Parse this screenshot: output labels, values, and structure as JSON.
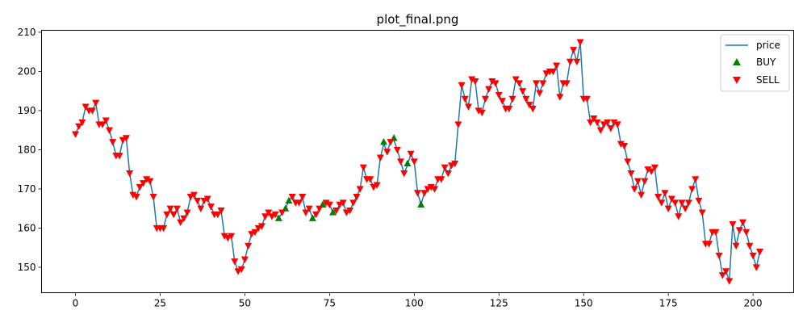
{
  "chart_data": {
    "type": "line",
    "title": "plot_final.png",
    "xlabel": "",
    "ylabel": "",
    "xlim": [
      -10,
      212
    ],
    "ylim": [
      143.5,
      210.5
    ],
    "xticks": [
      0,
      25,
      50,
      75,
      100,
      125,
      150,
      175,
      200
    ],
    "yticks": [
      150,
      160,
      170,
      180,
      190,
      200,
      210
    ],
    "grid": false,
    "legend_position": "top-right",
    "colors": {
      "price": "#1f77b4",
      "buy": "#008000",
      "sell": "#ff0000"
    },
    "legend": [
      {
        "key": "price",
        "label": "price"
      },
      {
        "key": "buy",
        "label": "BUY"
      },
      {
        "key": "sell",
        "label": "SELL"
      }
    ],
    "price": [
      184.0,
      186.0,
      187.0,
      191.0,
      190.0,
      190.0,
      192.0,
      186.5,
      186.5,
      187.5,
      185.0,
      182.0,
      178.5,
      178.5,
      182.5,
      183.0,
      174.0,
      168.5,
      168.0,
      170.5,
      171.5,
      172.5,
      172.0,
      168.0,
      160.0,
      160.0,
      160.0,
      163.5,
      165.0,
      163.5,
      165.0,
      161.5,
      162.5,
      164.0,
      168.0,
      168.5,
      167.0,
      165.0,
      167.0,
      167.5,
      165.5,
      163.5,
      163.5,
      164.5,
      158.0,
      157.5,
      158.0,
      151.5,
      149.0,
      149.5,
      152.0,
      155.5,
      158.5,
      159.0,
      160.0,
      160.5,
      163.0,
      164.0,
      163.0,
      163.5,
      162.5,
      164.0,
      165.0,
      167.0,
      168.0,
      166.5,
      166.5,
      168.0,
      164.0,
      165.0,
      162.5,
      163.5,
      165.0,
      166.0,
      166.5,
      166.0,
      164.0,
      164.5,
      166.0,
      166.5,
      164.0,
      164.5,
      166.5,
      168.0,
      170.0,
      175.5,
      172.5,
      172.5,
      170.5,
      171.0,
      178.0,
      181.5,
      179.5,
      182.0,
      182.5,
      180.0,
      177.0,
      174.0,
      176.0,
      179.0,
      177.0,
      169.0,
      166.0,
      169.0,
      170.0,
      170.5,
      170.0,
      172.5,
      172.5,
      175.5,
      174.0,
      176.0,
      176.5,
      186.5,
      196.5,
      193.0,
      191.0,
      198.0,
      197.5,
      190.0,
      189.5,
      193.0,
      195.5,
      197.5,
      197.0,
      194.0,
      192.5,
      190.5,
      190.5,
      193.0,
      198.0,
      197.0,
      195.0,
      193.0,
      191.5,
      190.5,
      197.0,
      194.5,
      197.0,
      199.5,
      200.0,
      200.0,
      201.5,
      193.5,
      197.0,
      197.0,
      202.5,
      205.5,
      202.5,
      207.5,
      193.0,
      193.0,
      187.0,
      188.0,
      187.0,
      185.0,
      186.5,
      187.0,
      185.5,
      187.0,
      186.5,
      181.5,
      181.0,
      177.0,
      174.0,
      170.0,
      172.0,
      168.5,
      172.0,
      175.0,
      174.5,
      175.5,
      168.0,
      166.5,
      169.0,
      165.0,
      167.5,
      166.5,
      163.0,
      166.5,
      165.0,
      166.5,
      170.0,
      172.5,
      167.0,
      164.0,
      156.0,
      156.0,
      159.0,
      159.0,
      153.0,
      148.0,
      149.0,
      146.5,
      161.0,
      155.5,
      159.5,
      161.5,
      159.0,
      155.5,
      153.0,
      150.0,
      154.0
    ],
    "buy_x": [
      60,
      62,
      63,
      70,
      73,
      76,
      91,
      94,
      98,
      102
    ],
    "buy_y": [
      162.5,
      165.0,
      167.0,
      162.5,
      166.0,
      164.0,
      182.0,
      183.0,
      176.5,
      166.0
    ],
    "sell_x": [
      0,
      1,
      2,
      3,
      4,
      5,
      6,
      7,
      8,
      9,
      10,
      11,
      12,
      13,
      14,
      15,
      16,
      17,
      18,
      19,
      20,
      21,
      22,
      23,
      24,
      25,
      26,
      27,
      28,
      29,
      30,
      31,
      32,
      33,
      34,
      35,
      36,
      37,
      38,
      39,
      40,
      41,
      42,
      43,
      44,
      45,
      46,
      47,
      48,
      49,
      50,
      51,
      52,
      53,
      54,
      55,
      56,
      57,
      58,
      59,
      61,
      64,
      65,
      66,
      67,
      68,
      69,
      71,
      72,
      74,
      75,
      77,
      78,
      79,
      80,
      81,
      82,
      83,
      84,
      85,
      86,
      87,
      88,
      89,
      90,
      92,
      93,
      95,
      96,
      97,
      99,
      100,
      101,
      103,
      104,
      105,
      106,
      107,
      108,
      109,
      110,
      111,
      112,
      113,
      114,
      115,
      116,
      117,
      118,
      119,
      120,
      121,
      122,
      123,
      124,
      125,
      126,
      127,
      128,
      129,
      130,
      131,
      132,
      133,
      134,
      135,
      136,
      137,
      138,
      139,
      140,
      141,
      142,
      143,
      144,
      145,
      146,
      147,
      148,
      149,
      150,
      151,
      152,
      153,
      154,
      155,
      156,
      157,
      158,
      159,
      160,
      161,
      162,
      163,
      164,
      165,
      166,
      167,
      168,
      169,
      170,
      171,
      172,
      173,
      174,
      175,
      176,
      177,
      178,
      179,
      180,
      181,
      182,
      183,
      184,
      185,
      186,
      187,
      188,
      189,
      190,
      191,
      192,
      193,
      194,
      195,
      196,
      197,
      198,
      199,
      200,
      201,
      202
    ]
  }
}
